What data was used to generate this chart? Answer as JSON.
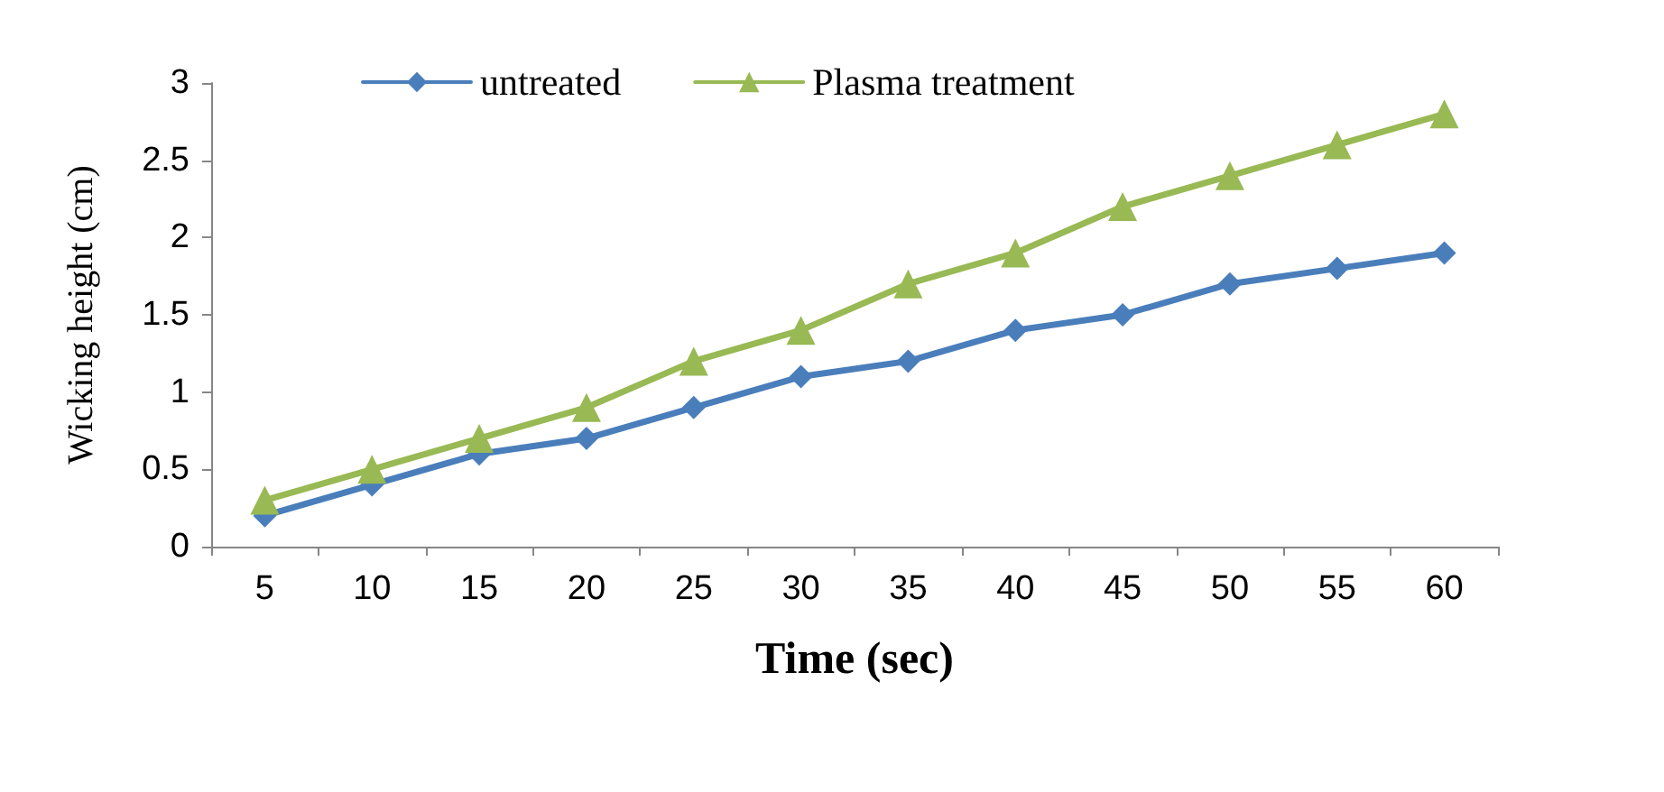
{
  "chart_data": {
    "type": "line",
    "xlabel": "Time (sec)",
    "ylabel": "Wicking height (cm)",
    "categories": [
      "5",
      "10",
      "15",
      "20",
      "25",
      "30",
      "35",
      "40",
      "45",
      "50",
      "55",
      "60"
    ],
    "series": [
      {
        "name": "untreated",
        "color": "#4a7ebb",
        "marker": "diamond",
        "values": [
          0.2,
          0.4,
          0.6,
          0.7,
          0.9,
          1.1,
          1.2,
          1.4,
          1.5,
          1.7,
          1.8,
          1.9
        ]
      },
      {
        "name": "Plasma treatment",
        "color": "#98b954",
        "marker": "triangle",
        "values": [
          0.3,
          0.5,
          0.7,
          0.9,
          1.2,
          1.4,
          1.7,
          1.9,
          2.2,
          2.4,
          2.6,
          2.8
        ]
      }
    ],
    "ylim": [
      0,
      3
    ],
    "yticks": [
      0,
      0.5,
      1,
      1.5,
      2,
      2.5,
      3
    ],
    "grid": false,
    "legend": "top",
    "line_style": "solid"
  }
}
